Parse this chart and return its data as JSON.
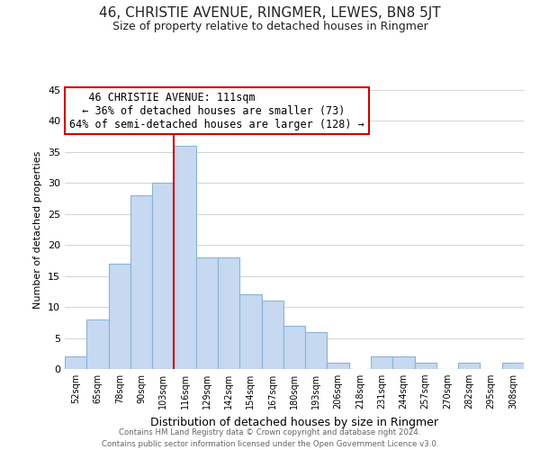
{
  "title": "46, CHRISTIE AVENUE, RINGMER, LEWES, BN8 5JT",
  "subtitle": "Size of property relative to detached houses in Ringmer",
  "xlabel": "Distribution of detached houses by size in Ringmer",
  "ylabel": "Number of detached properties",
  "bar_labels": [
    "52sqm",
    "65sqm",
    "78sqm",
    "90sqm",
    "103sqm",
    "116sqm",
    "129sqm",
    "142sqm",
    "154sqm",
    "167sqm",
    "180sqm",
    "193sqm",
    "206sqm",
    "218sqm",
    "231sqm",
    "244sqm",
    "257sqm",
    "270sqm",
    "282sqm",
    "295sqm",
    "308sqm"
  ],
  "bar_values": [
    2,
    8,
    17,
    28,
    30,
    36,
    18,
    18,
    12,
    11,
    7,
    6,
    1,
    0,
    2,
    2,
    1,
    0,
    1,
    0,
    1
  ],
  "bar_color": "#c6d9f0",
  "bar_edge_color": "#8ab4d8",
  "vline_x": 4.5,
  "vline_color": "#cc0000",
  "annotation_title": "46 CHRISTIE AVENUE: 111sqm",
  "annotation_line1": "← 36% of detached houses are smaller (73)",
  "annotation_line2": "64% of semi-detached houses are larger (128) →",
  "annotation_box_color": "#ffffff",
  "annotation_box_edge": "#cc0000",
  "ylim": [
    0,
    45
  ],
  "footer1": "Contains HM Land Registry data © Crown copyright and database right 2024.",
  "footer2": "Contains public sector information licensed under the Open Government Licence v3.0.",
  "title_fontsize": 11,
  "subtitle_fontsize": 9,
  "grid_color": "#cccccc"
}
